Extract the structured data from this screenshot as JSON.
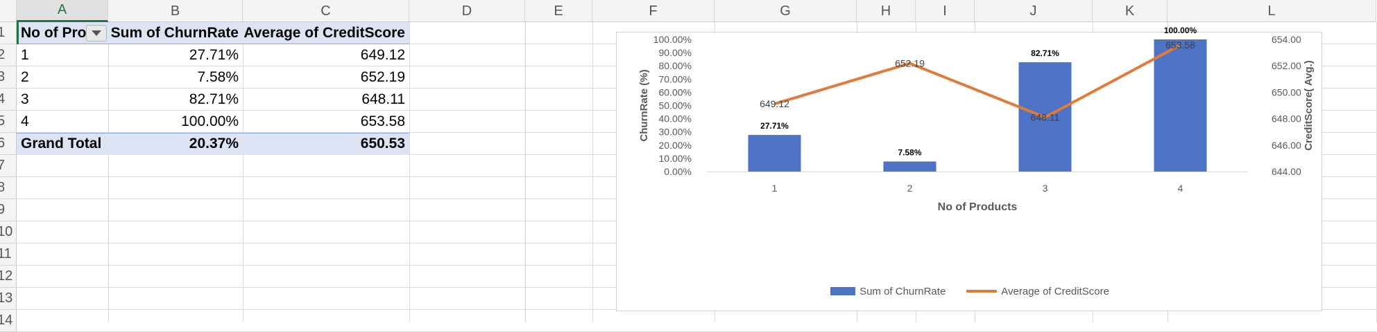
{
  "spreadsheet": {
    "column_headers": [
      "A",
      "B",
      "C",
      "D",
      "E",
      "F",
      "G",
      "H",
      "I",
      "J",
      "K",
      "L"
    ],
    "row_headers": [
      "1",
      "2",
      "3",
      "4",
      "5",
      "6",
      "7",
      "8",
      "9",
      "10",
      "11",
      "12",
      "13",
      "14"
    ],
    "pivot": {
      "headers": {
        "col_a": "No of Pro",
        "col_b": "Sum of ChurnRate",
        "col_c": "Average of CreditScore"
      },
      "rows": [
        {
          "no_of_products": "1",
          "sum_churn": "27.71%",
          "avg_credit": "649.12"
        },
        {
          "no_of_products": "2",
          "sum_churn": "7.58%",
          "avg_credit": "652.19"
        },
        {
          "no_of_products": "3",
          "sum_churn": "82.71%",
          "avg_credit": "648.11"
        },
        {
          "no_of_products": "4",
          "sum_churn": "100.00%",
          "avg_credit": "653.58"
        }
      ],
      "grand_total": {
        "label": "Grand Total",
        "sum_churn": "20.37%",
        "avg_credit": "650.53"
      }
    }
  },
  "chart_data": {
    "type": "bar",
    "categories": [
      "1",
      "2",
      "3",
      "4"
    ],
    "series": [
      {
        "name": "Sum of ChurnRate",
        "kind": "bar",
        "axis": "left",
        "values": [
          27.71,
          7.58,
          82.71,
          100.0
        ],
        "labels": [
          "27.71%",
          "7.58%",
          "82.71%",
          "100.00%"
        ],
        "color": "#4e72c4"
      },
      {
        "name": "Average of CreditScore",
        "kind": "line",
        "axis": "right",
        "values": [
          649.12,
          652.19,
          648.11,
          653.58
        ],
        "labels": [
          "649.12",
          "652.19",
          "648.11",
          "653.58"
        ],
        "color": "#e07b39"
      }
    ],
    "xlabel": "No of Products",
    "ylabel": "ChurnRate (%)",
    "y2label": "CreditScore( Avg.)",
    "ylim": [
      0,
      100
    ],
    "y2lim": [
      644,
      654
    ],
    "yticks": [
      "0.00%",
      "10.00%",
      "20.00%",
      "30.00%",
      "40.00%",
      "50.00%",
      "60.00%",
      "70.00%",
      "80.00%",
      "90.00%",
      "100.00%"
    ],
    "y2ticks": [
      "644.00",
      "646.00",
      "648.00",
      "650.00",
      "652.00",
      "654.00"
    ],
    "legend": "bottom",
    "grid": false
  }
}
